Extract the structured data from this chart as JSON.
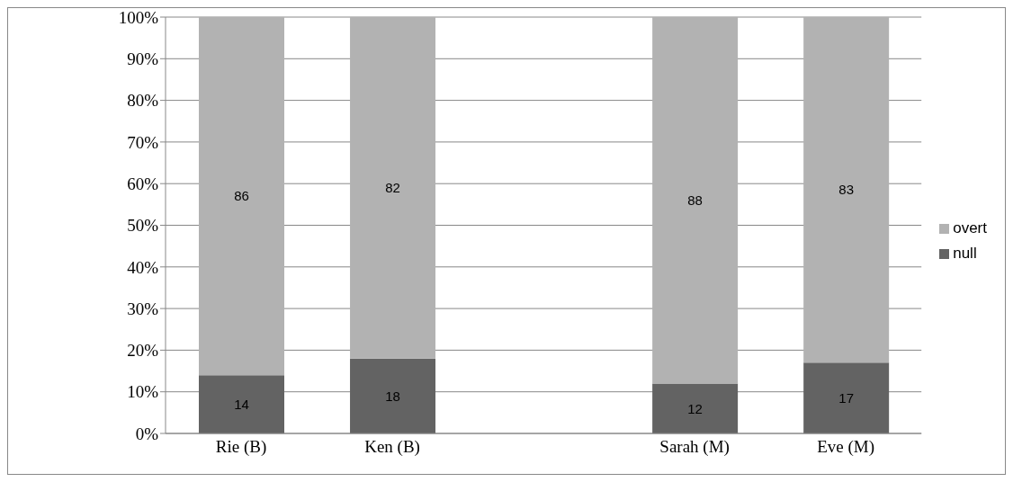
{
  "chart_data": {
    "type": "bar",
    "stacked": true,
    "categories": [
      "Rie (B)",
      "Ken (B)",
      null,
      "Sarah (M)",
      "Eve (M)"
    ],
    "series": [
      {
        "name": "null",
        "color": "#636363",
        "values": [
          14,
          18,
          null,
          12,
          17
        ]
      },
      {
        "name": "overt",
        "color": "#b2b2b2",
        "values": [
          86,
          82,
          null,
          88,
          83
        ]
      }
    ],
    "ylim": [
      0,
      100
    ],
    "yticks": [
      {
        "value": 0,
        "label": "0%"
      },
      {
        "value": 10,
        "label": "10%"
      },
      {
        "value": 20,
        "label": "20%"
      },
      {
        "value": 30,
        "label": "30%"
      },
      {
        "value": 40,
        "label": "40%"
      },
      {
        "value": 50,
        "label": "50%"
      },
      {
        "value": 60,
        "label": "60%"
      },
      {
        "value": 70,
        "label": "70%"
      },
      {
        "value": 80,
        "label": "80%"
      },
      {
        "value": 90,
        "label": "90%"
      },
      {
        "value": 100,
        "label": "100%"
      }
    ],
    "grid": "y",
    "legend": "right",
    "data_labels": true
  }
}
